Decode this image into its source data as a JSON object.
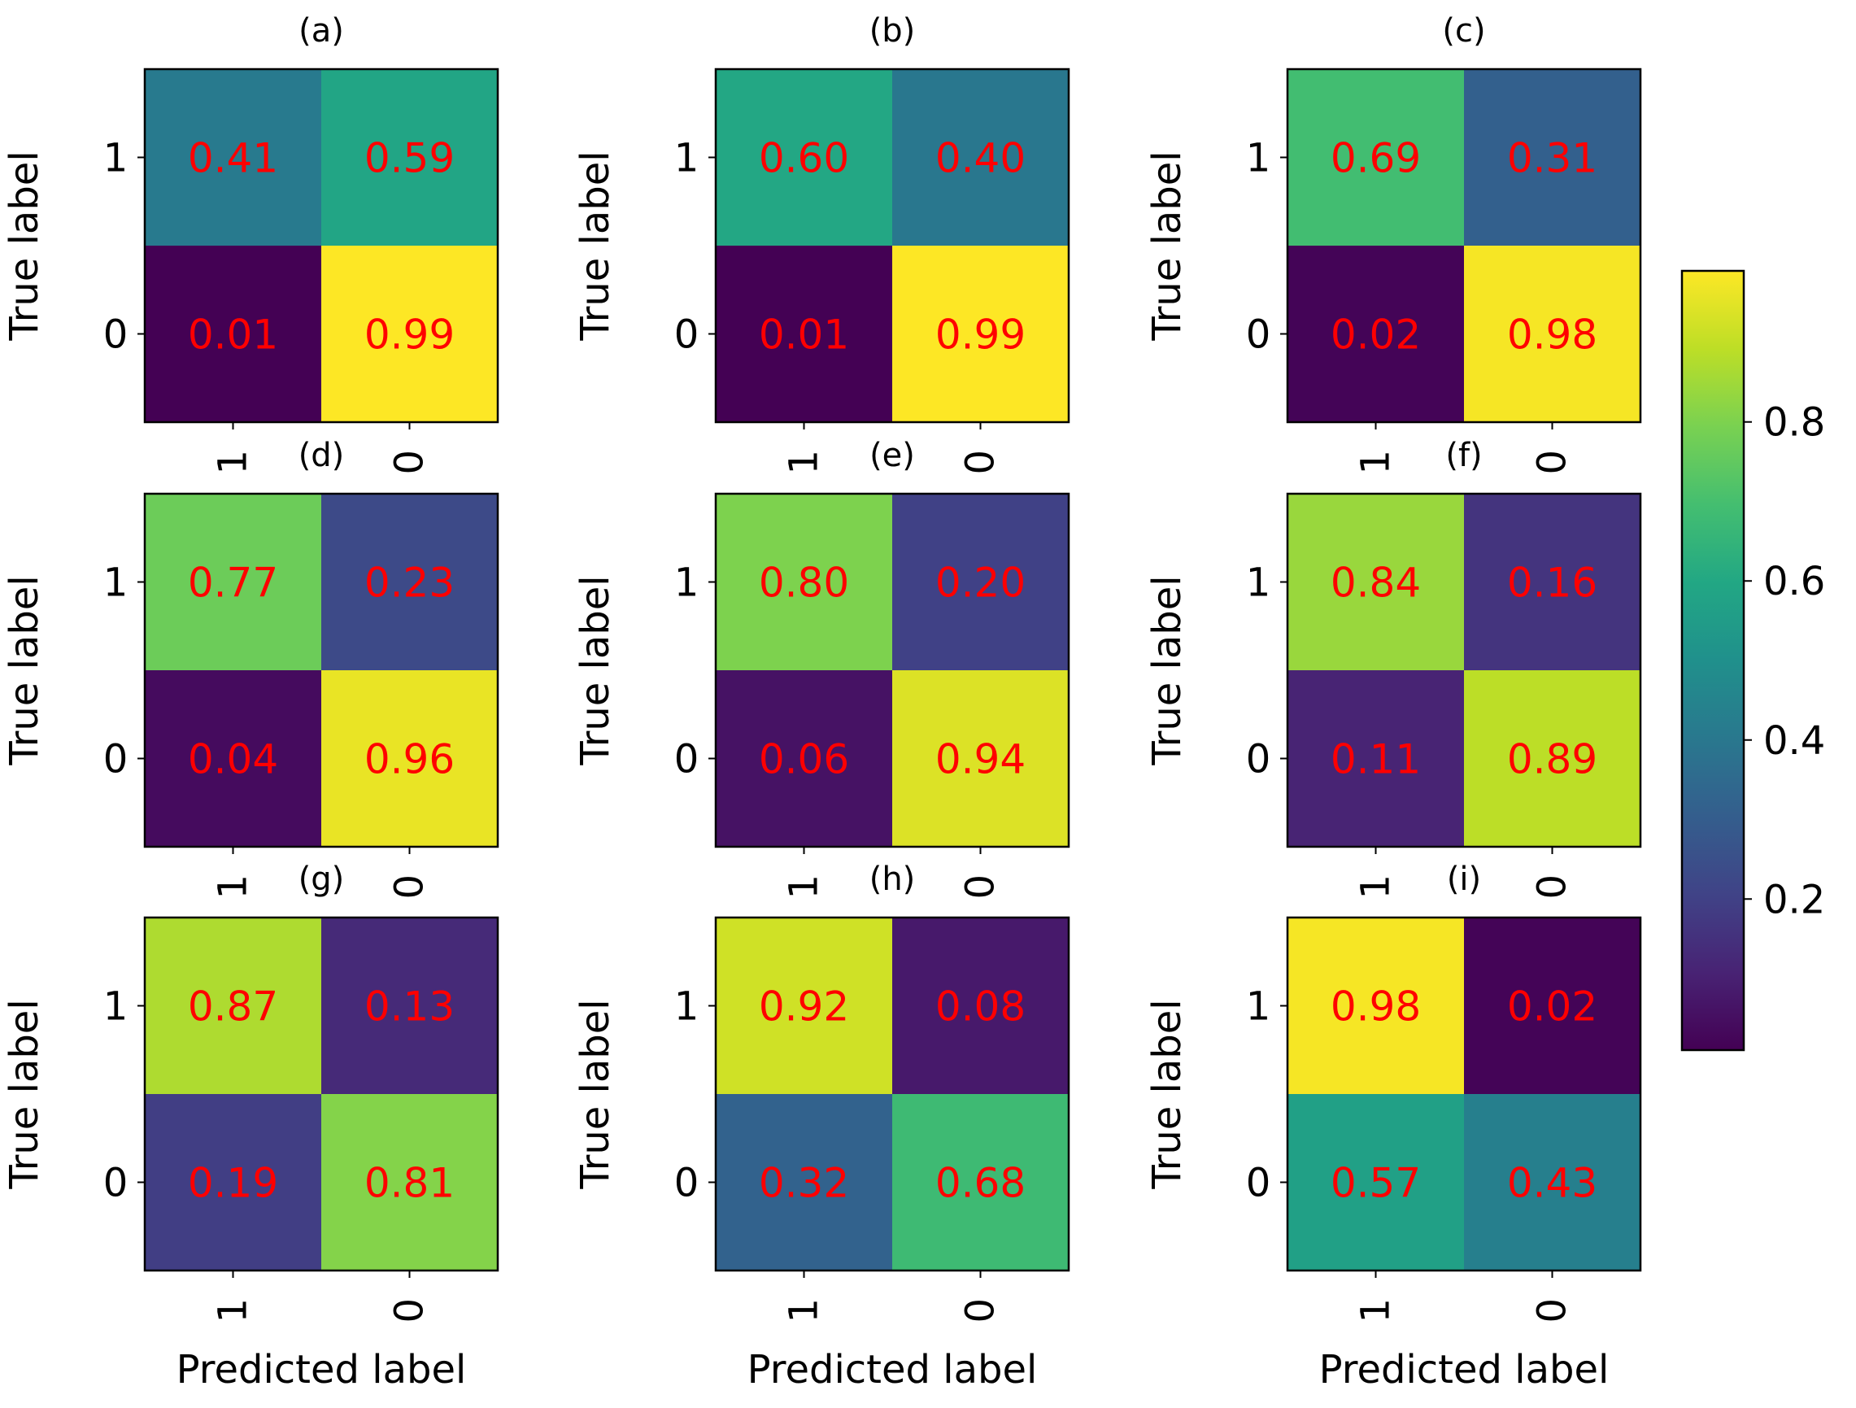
{
  "chart_data": {
    "type": "heatmap",
    "row_labels": [
      "1",
      "0"
    ],
    "col_labels": [
      "1",
      "0"
    ],
    "ylabel": "True label",
    "xlabel": "Predicted label",
    "value_text_color": "#ff0000",
    "panels": [
      {
        "title": "(a)",
        "values": [
          [
            0.41,
            0.59
          ],
          [
            0.01,
            0.99
          ]
        ]
      },
      {
        "title": "(b)",
        "values": [
          [
            0.6,
            0.4
          ],
          [
            0.01,
            0.99
          ]
        ]
      },
      {
        "title": "(c)",
        "values": [
          [
            0.69,
            0.31
          ],
          [
            0.02,
            0.98
          ]
        ]
      },
      {
        "title": "(d)",
        "values": [
          [
            0.77,
            0.23
          ],
          [
            0.04,
            0.96
          ]
        ]
      },
      {
        "title": "(e)",
        "values": [
          [
            0.8,
            0.2
          ],
          [
            0.06,
            0.94
          ]
        ]
      },
      {
        "title": "(f)",
        "values": [
          [
            0.84,
            0.16
          ],
          [
            0.11,
            0.89
          ]
        ]
      },
      {
        "title": "(g)",
        "values": [
          [
            0.87,
            0.13
          ],
          [
            0.19,
            0.81
          ]
        ]
      },
      {
        "title": "(h)",
        "values": [
          [
            0.92,
            0.08
          ],
          [
            0.32,
            0.68
          ]
        ]
      },
      {
        "title": "(i)",
        "values": [
          [
            0.98,
            0.02
          ],
          [
            0.57,
            0.43
          ]
        ]
      }
    ],
    "colorbar": {
      "cmap": "viridis",
      "range": [
        0.01,
        0.99
      ],
      "ticks": [
        0.2,
        0.4,
        0.6,
        0.8
      ],
      "tick_labels": [
        "0.2",
        "0.4",
        "0.6",
        "0.8"
      ]
    }
  }
}
